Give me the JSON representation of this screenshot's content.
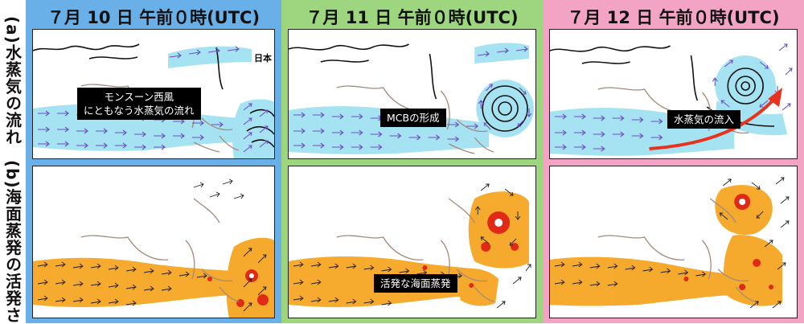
{
  "row_labels": {
    "a": "(a)水蒸気の流れ",
    "b": "(b)海面蒸発の活発さ"
  },
  "columns": [
    {
      "title": "７月 10 日 午前０時(UTC)",
      "bg": "#6ab0e8"
    },
    {
      "title": "７月 11 日 午前０時(UTC)",
      "bg": "#9ed67f"
    },
    {
      "title": "７月 12 日 午前０時(UTC)",
      "bg": "#f3a4c4"
    }
  ],
  "annotations": {
    "monsoon_line1": "モンスーン西風",
    "monsoon_line2": "にともなう水蒸気の流れ",
    "japan": "日本",
    "mcb": "MCBの形成",
    "inflow": "水蒸気の流入",
    "evaporation": "活発な海面蒸発"
  },
  "colors": {
    "vapor": "#a6e3f2",
    "evap_orange": "#f5a623",
    "evap_red": "#e02a16",
    "arrow_purple": "#6c4fc4",
    "coast_brown": "#a58a7c",
    "inflow_arrow": "#e8321e"
  }
}
